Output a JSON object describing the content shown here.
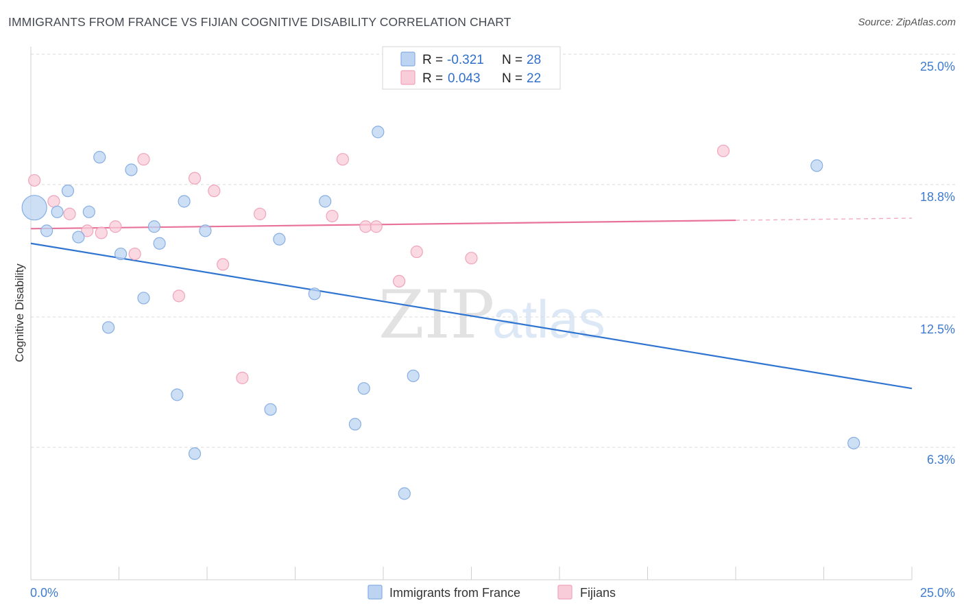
{
  "header": {
    "title": "IMMIGRANTS FROM FRANCE VS FIJIAN COGNITIVE DISABILITY CORRELATION CHART",
    "source": "Source: ZipAtlas.com"
  },
  "watermark": {
    "zip": "ZIP",
    "atlas": "atlas"
  },
  "legend_top": {
    "rows": [
      {
        "r_label": "R =",
        "r_value": "-0.321",
        "n_label": "N =",
        "n_value": "28"
      },
      {
        "r_label": "R =",
        "r_value": "0.043",
        "n_label": "N =",
        "n_value": "22"
      }
    ]
  },
  "legend_bottom": {
    "items": [
      {
        "label": "Immigrants from France"
      },
      {
        "label": "Fijians"
      }
    ]
  },
  "colors": {
    "blue_fill": "#bcd4f2",
    "blue_stroke": "#86aee3",
    "blue_line": "#2f74d0",
    "pink_fill": "#f9ccd9",
    "pink_stroke": "#f0a3bb",
    "pink_line": "#e8729a",
    "grid": "#d9d9d9",
    "tick_text": "#3d7bd0"
  },
  "chart_data": {
    "type": "scatter",
    "title": "IMMIGRANTS FROM FRANCE VS FIJIAN COGNITIVE DISABILITY CORRELATION CHART",
    "xlabel": "",
    "ylabel": "Cognitive Disability",
    "xlim": [
      0,
      25
    ],
    "ylim": [
      0,
      25
    ],
    "x_tick_labels": [
      "0.0%",
      "25.0%"
    ],
    "y_ticks": [
      {
        "value": 25.0,
        "label": "25.0%"
      },
      {
        "value": 18.8,
        "label": "18.8%"
      },
      {
        "value": 12.5,
        "label": "12.5%"
      },
      {
        "value": 6.3,
        "label": "6.3%"
      }
    ],
    "series": [
      {
        "name": "Immigrants from France",
        "color": "blue",
        "R": -0.321,
        "N": 28,
        "trend": {
          "x0": 0,
          "y0": 16.0,
          "x1": 25,
          "y1": 9.1,
          "solid_until": 25
        },
        "points": [
          {
            "x": 0.1,
            "y": 17.7,
            "big": true
          },
          {
            "x": 0.45,
            "y": 16.6
          },
          {
            "x": 0.75,
            "y": 17.5
          },
          {
            "x": 1.05,
            "y": 18.5
          },
          {
            "x": 1.35,
            "y": 16.3
          },
          {
            "x": 1.65,
            "y": 17.5
          },
          {
            "x": 1.95,
            "y": 20.1
          },
          {
            "x": 2.2,
            "y": 12.0
          },
          {
            "x": 2.55,
            "y": 15.5
          },
          {
            "x": 2.85,
            "y": 19.5
          },
          {
            "x": 3.2,
            "y": 13.4
          },
          {
            "x": 3.5,
            "y": 16.8
          },
          {
            "x": 3.65,
            "y": 16.0
          },
          {
            "x": 4.15,
            "y": 8.8
          },
          {
            "x": 4.35,
            "y": 18.0
          },
          {
            "x": 4.65,
            "y": 6.0
          },
          {
            "x": 4.95,
            "y": 16.6
          },
          {
            "x": 6.8,
            "y": 8.1
          },
          {
            "x": 7.05,
            "y": 16.2
          },
          {
            "x": 8.05,
            "y": 13.6
          },
          {
            "x": 8.35,
            "y": 18.0
          },
          {
            "x": 9.2,
            "y": 7.4
          },
          {
            "x": 9.45,
            "y": 9.1
          },
          {
            "x": 9.85,
            "y": 21.3
          },
          {
            "x": 10.6,
            "y": 4.1
          },
          {
            "x": 10.85,
            "y": 9.7
          },
          {
            "x": 22.3,
            "y": 19.7
          },
          {
            "x": 23.35,
            "y": 6.5
          }
        ]
      },
      {
        "name": "Fijians",
        "color": "pink",
        "R": 0.043,
        "N": 22,
        "trend": {
          "x0": 0,
          "y0": 16.7,
          "x1": 25,
          "y1": 17.2,
          "solid_until": 20
        },
        "points": [
          {
            "x": 0.1,
            "y": 19.0
          },
          {
            "x": 0.65,
            "y": 18.0
          },
          {
            "x": 1.1,
            "y": 17.4
          },
          {
            "x": 1.6,
            "y": 16.6
          },
          {
            "x": 2.0,
            "y": 16.5
          },
          {
            "x": 2.4,
            "y": 16.8
          },
          {
            "x": 2.95,
            "y": 15.5
          },
          {
            "x": 3.2,
            "y": 20.0
          },
          {
            "x": 4.2,
            "y": 13.5
          },
          {
            "x": 4.65,
            "y": 19.1
          },
          {
            "x": 5.2,
            "y": 18.5
          },
          {
            "x": 5.45,
            "y": 15.0
          },
          {
            "x": 6.0,
            "y": 9.6
          },
          {
            "x": 6.5,
            "y": 17.4
          },
          {
            "x": 8.55,
            "y": 17.3
          },
          {
            "x": 8.85,
            "y": 20.0
          },
          {
            "x": 9.5,
            "y": 16.8
          },
          {
            "x": 9.8,
            "y": 16.8
          },
          {
            "x": 10.45,
            "y": 14.2
          },
          {
            "x": 10.95,
            "y": 15.6
          },
          {
            "x": 12.5,
            "y": 15.3
          },
          {
            "x": 19.65,
            "y": 20.4
          }
        ]
      }
    ]
  }
}
